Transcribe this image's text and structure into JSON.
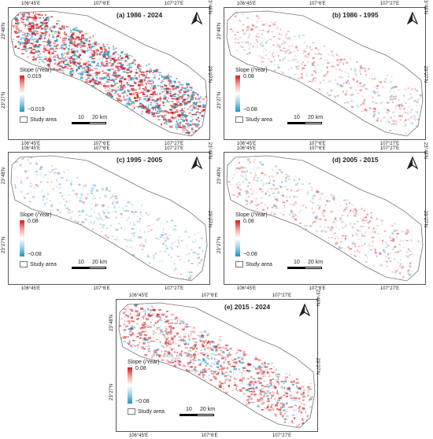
{
  "ticks": {
    "lon": [
      "106°45'E",
      "107°6'E",
      "107°27'E"
    ],
    "lat": [
      "23°48'N",
      "23°27'N"
    ]
  },
  "legend": {
    "title": "Slope (/Year)",
    "study_area": "Study area"
  },
  "scale": {
    "label_a": "10",
    "label_b": "20 km"
  },
  "colors": {
    "positive": "#d7191c",
    "negative": "#1a96c4",
    "zero": "#ffffff",
    "boundary": "#777777"
  },
  "panels": [
    {
      "id": "a",
      "title": "(a) 1986 - 2024",
      "max": "0.019",
      "min": "−0.019",
      "intensity": "high"
    },
    {
      "id": "b",
      "title": "(b) 1986 - 1995",
      "max": "0.08",
      "min": "−0.08",
      "intensity": "low"
    },
    {
      "id": "c",
      "title": "(c) 1995 - 2005",
      "max": "0.08",
      "min": "−0.08",
      "intensity": "low-blue"
    },
    {
      "id": "d",
      "title": "(d) 2005 - 2015",
      "max": "0.08",
      "min": "−0.08",
      "intensity": "low"
    },
    {
      "id": "e",
      "title": "(e) 2015 - 2024",
      "max": "0.08",
      "min": "−0.08",
      "intensity": "medium"
    }
  ]
}
